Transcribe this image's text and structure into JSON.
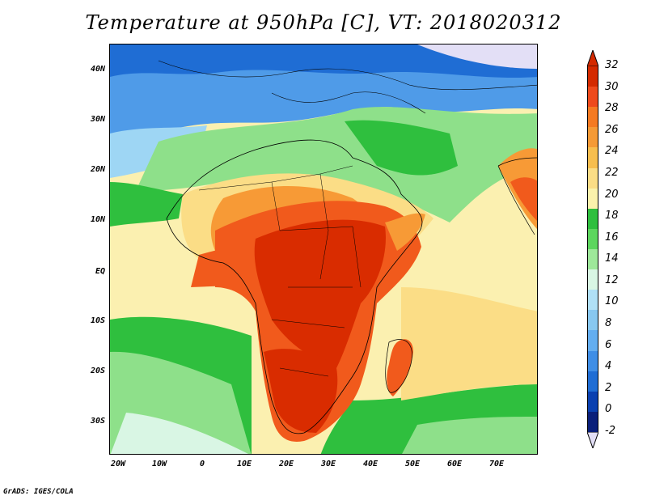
{
  "title": "Temperature at 950hPa [C], VT: 2018020312",
  "credit": "GrADS: IGES/COLA",
  "y_axis_labels": [
    "40N",
    "30N",
    "20N",
    "10N",
    "EQ",
    "10S",
    "20S",
    "30S"
  ],
  "x_axis_labels": [
    "20W",
    "10W",
    "0",
    "10E",
    "20E",
    "30E",
    "40E",
    "50E",
    "60E",
    "70E"
  ],
  "colorbar": {
    "labels": [
      "32",
      "30",
      "28",
      "26",
      "24",
      "22",
      "20",
      "18",
      "16",
      "14",
      "12",
      "10",
      "8",
      "6",
      "4",
      "2",
      "0",
      "-2"
    ],
    "colors": [
      "#d42a00",
      "#ee4a1c",
      "#f57a22",
      "#f59a36",
      "#f7be4e",
      "#fbdd86",
      "#fbf2ac",
      "#2fbf3e",
      "#5dd65e",
      "#9ee89a",
      "#d9f6e4",
      "#b0e0f6",
      "#88c8f0",
      "#64aef0",
      "#3f8ee6",
      "#1f6dd4",
      "#0a40b0",
      "#0a1f7a"
    ],
    "top_triangle_color": "#d42a00",
    "bottom_triangle_color": "#e3dff6"
  },
  "map_colors": {
    "hot": "#d92c00",
    "warm": "#f15a1c",
    "orange": "#f79a36",
    "yellow": "#fbdd86",
    "pale": "#fbf0b0",
    "green": "#2fbf3e",
    "lightgreen": "#8ee08a",
    "cyan": "#d9f6e4",
    "lightblue": "#9ed6f4",
    "blue": "#4f9be8",
    "darkblue": "#1f6dd4",
    "lavender": "#e3dff6"
  }
}
